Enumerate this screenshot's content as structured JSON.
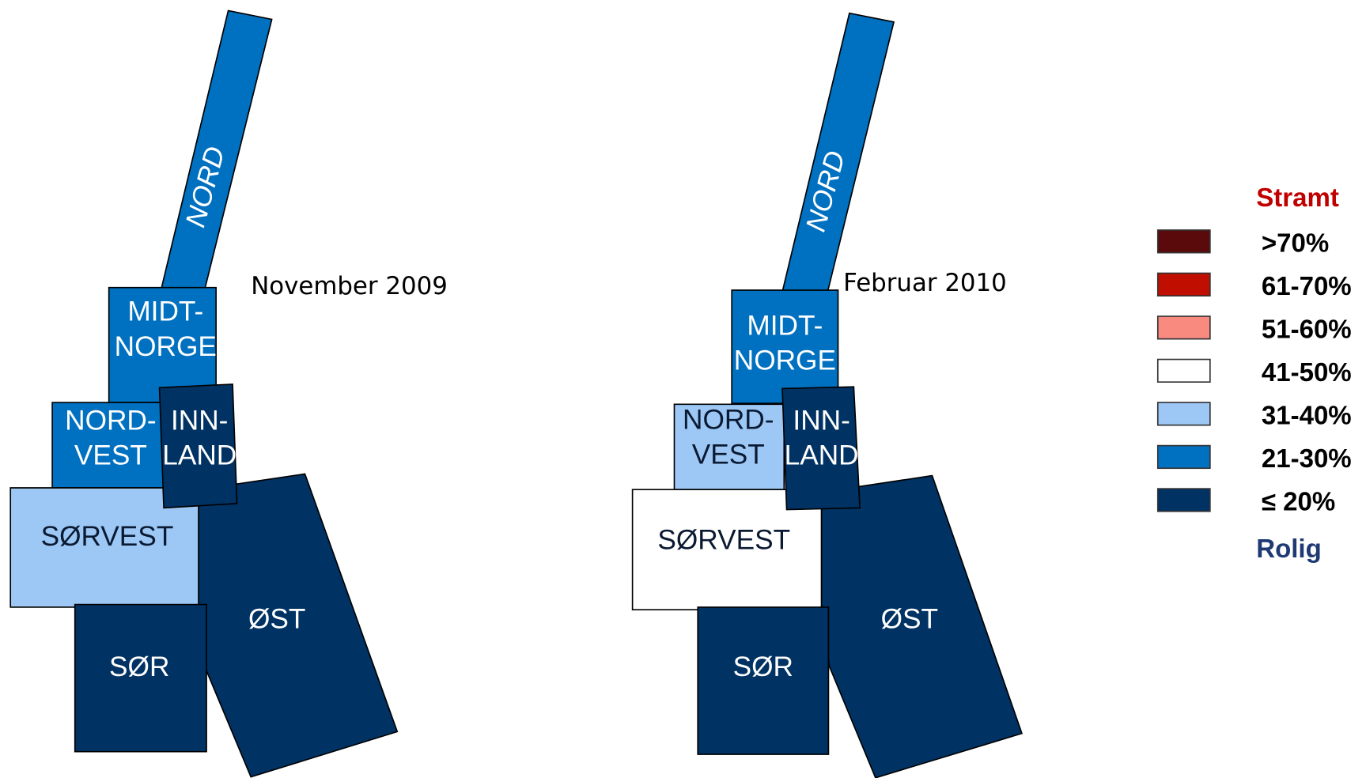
{
  "maps": [
    {
      "label": "November 2009",
      "regions": [
        {
          "lines": [
            "NORD"
          ],
          "color": "#0070c0"
        },
        {
          "lines": [
            "MIDT-",
            "NORGE"
          ],
          "color": "#0070c0"
        },
        {
          "lines": [
            "NORD-",
            "VEST"
          ],
          "color": "#0070c0"
        },
        {
          "lines": [
            "SØRVEST"
          ],
          "color": "#9dc8f5"
        },
        {
          "lines": [
            "ØST"
          ],
          "color": "#003263"
        },
        {
          "lines": [
            "SØR"
          ],
          "color": "#003263"
        },
        {
          "lines": [
            "INN-",
            "LAND"
          ],
          "color": "#003263"
        }
      ]
    },
    {
      "label": "Februar 2010",
      "regions": [
        {
          "lines": [
            "NORD"
          ],
          "color": "#0070c0"
        },
        {
          "lines": [
            "MIDT-",
            "NORGE"
          ],
          "color": "#0070c0"
        },
        {
          "lines": [
            "NORD-",
            "VEST"
          ],
          "color": "#9dc8f5"
        },
        {
          "lines": [
            "SØRVEST"
          ],
          "color": "#ffffff"
        },
        {
          "lines": [
            "ØST"
          ],
          "color": "#003263"
        },
        {
          "lines": [
            "SØR"
          ],
          "color": "#003263"
        },
        {
          "lines": [
            "INN-",
            "LAND"
          ],
          "color": "#003263"
        }
      ]
    }
  ],
  "legend": {
    "top_label": "Stramt",
    "bottom_label": "Rolig",
    "items": [
      {
        "label": ">70%",
        "color": "#5a0a0a"
      },
      {
        "label": "61-70%",
        "color": "#c00f00"
      },
      {
        "label": "51-60%",
        "color": "#f98a80"
      },
      {
        "label": "41-50%",
        "color": "#ffffff"
      },
      {
        "label": "31-40%",
        "color": "#9dc8f5"
      },
      {
        "label": "21-30%",
        "color": "#0070c0"
      },
      {
        "label": "≤ 20%",
        "color": "#003263"
      }
    ]
  }
}
